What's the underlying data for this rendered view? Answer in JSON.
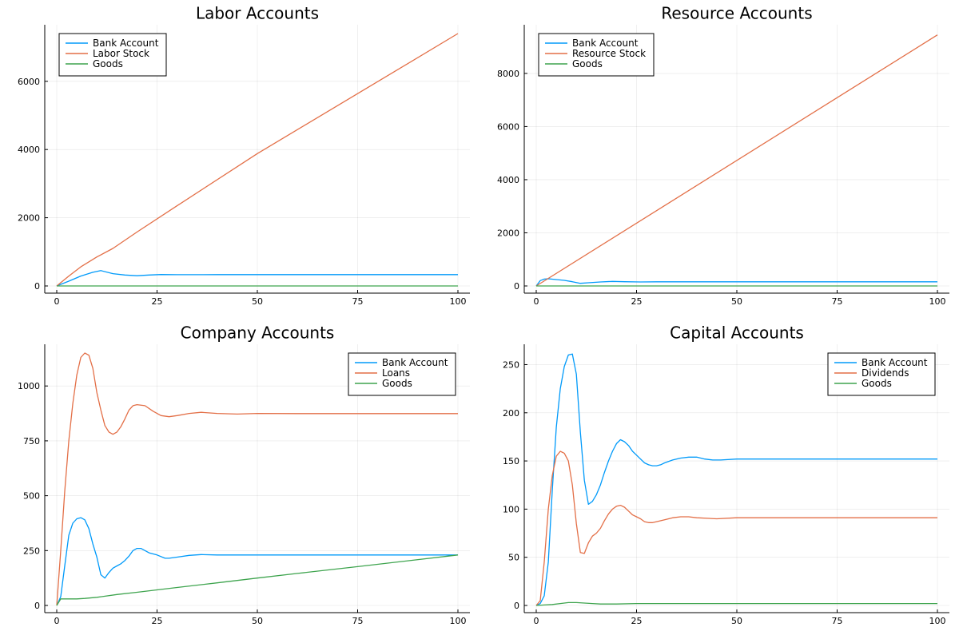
{
  "chart_data": [
    {
      "type": "line",
      "title": "Labor Accounts",
      "xlim": [
        0,
        100
      ],
      "ylim": [
        0,
        7400
      ],
      "xticks": [
        0,
        25,
        50,
        75,
        100
      ],
      "yticks": [
        0,
        2000,
        4000,
        6000
      ],
      "grid": true,
      "legend_position": "top-left",
      "series": [
        {
          "name": "Bank Account",
          "color": "#009AFA",
          "x": [
            0,
            3,
            6,
            9,
            11,
            14,
            17,
            20,
            23,
            26,
            30,
            35,
            40,
            50,
            60,
            75,
            100
          ],
          "y": [
            0,
            140,
            290,
            400,
            450,
            360,
            320,
            300,
            320,
            335,
            330,
            330,
            333,
            333,
            333,
            333,
            333
          ]
        },
        {
          "name": "Labor Stock",
          "color": "#E36F47",
          "x": [
            0,
            3,
            6,
            10,
            14,
            20,
            30,
            50,
            75,
            100
          ],
          "y": [
            0,
            290,
            560,
            850,
            1100,
            1580,
            2350,
            3880,
            5640,
            7400
          ]
        },
        {
          "name": "Goods",
          "color": "#3EA44E",
          "x": [
            0,
            100
          ],
          "y": [
            0,
            0
          ]
        }
      ]
    },
    {
      "type": "line",
      "title": "Resource Accounts",
      "xlim": [
        0,
        100
      ],
      "ylim": [
        0,
        9500
      ],
      "xticks": [
        0,
        25,
        50,
        75,
        100
      ],
      "yticks": [
        0,
        2000,
        4000,
        6000,
        8000
      ],
      "grid": true,
      "legend_position": "top-left",
      "series": [
        {
          "name": "Bank Account",
          "color": "#009AFA",
          "x": [
            0,
            1,
            2,
            3,
            5,
            7,
            9,
            11,
            13,
            16,
            19,
            22,
            26,
            30,
            40,
            60,
            100
          ],
          "y": [
            0,
            200,
            260,
            270,
            240,
            210,
            160,
            100,
            120,
            150,
            170,
            160,
            150,
            155,
            155,
            155,
            155
          ]
        },
        {
          "name": "Resource Stock",
          "color": "#E36F47",
          "x": [
            0,
            100
          ],
          "y": [
            0,
            9450
          ]
        },
        {
          "name": "Goods",
          "color": "#3EA44E",
          "x": [
            0,
            100
          ],
          "y": [
            0,
            0
          ]
        }
      ]
    },
    {
      "type": "line",
      "title": "Company Accounts",
      "xlim": [
        0,
        100
      ],
      "ylim": [
        0,
        1150
      ],
      "xticks": [
        0,
        25,
        50,
        75,
        100
      ],
      "yticks": [
        0,
        250,
        500,
        750,
        1000
      ],
      "grid": true,
      "legend_position": "top-right",
      "series": [
        {
          "name": "Bank Account",
          "color": "#009AFA",
          "x": [
            0,
            1,
            2,
            3,
            4,
            5,
            6,
            7,
            8,
            9,
            10,
            11,
            12,
            13,
            14,
            15,
            16,
            17,
            18,
            19,
            20,
            21,
            22,
            23,
            25,
            27,
            28,
            30,
            33,
            36,
            40,
            45,
            50,
            60,
            75,
            100
          ],
          "y": [
            0,
            40,
            180,
            320,
            375,
            395,
            400,
            390,
            350,
            280,
            220,
            140,
            125,
            150,
            170,
            180,
            190,
            205,
            225,
            250,
            260,
            260,
            250,
            240,
            230,
            215,
            215,
            220,
            228,
            232,
            230,
            230,
            230,
            230,
            230,
            230
          ]
        },
        {
          "name": "Loans",
          "color": "#E36F47",
          "x": [
            0,
            1,
            2,
            3,
            4,
            5,
            6,
            7,
            8,
            9,
            10,
            11,
            12,
            13,
            14,
            15,
            16,
            17,
            18,
            19,
            20,
            22,
            24,
            26,
            28,
            30,
            33,
            36,
            40,
            45,
            50,
            60,
            75,
            100
          ],
          "y": [
            0,
            250,
            520,
            750,
            920,
            1050,
            1130,
            1150,
            1140,
            1080,
            970,
            890,
            820,
            790,
            780,
            790,
            815,
            850,
            890,
            910,
            915,
            910,
            885,
            865,
            860,
            865,
            875,
            880,
            875,
            872,
            875,
            874,
            874,
            874
          ]
        },
        {
          "name": "Goods",
          "color": "#3EA44E",
          "x": [
            0,
            1,
            2,
            3,
            5,
            7,
            10,
            15,
            20,
            30,
            40,
            50,
            60,
            75,
            100
          ],
          "y": [
            0,
            30,
            30,
            30,
            30,
            32,
            37,
            50,
            60,
            82,
            103,
            125,
            146,
            177,
            230
          ]
        }
      ]
    },
    {
      "type": "line",
      "title": "Capital Accounts",
      "xlim": [
        0,
        100
      ],
      "ylim": [
        0,
        262
      ],
      "xticks": [
        0,
        25,
        50,
        75,
        100
      ],
      "yticks": [
        0,
        50,
        100,
        150,
        200,
        250
      ],
      "grid": true,
      "legend_position": "top-right",
      "series": [
        {
          "name": "Bank Account",
          "color": "#009AFA",
          "x": [
            0,
            1,
            2,
            3,
            4,
            5,
            6,
            7,
            8,
            9,
            10,
            11,
            12,
            13,
            14,
            15,
            16,
            17,
            18,
            19,
            20,
            21,
            22,
            23,
            24,
            25,
            26,
            27,
            28,
            29,
            30,
            31,
            32,
            34,
            36,
            38,
            40,
            42,
            44,
            46,
            50,
            55,
            60,
            75,
            100
          ],
          "y": [
            0,
            2,
            10,
            45,
            120,
            185,
            225,
            248,
            260,
            261,
            240,
            180,
            130,
            105,
            108,
            115,
            125,
            138,
            150,
            160,
            168,
            172,
            170,
            166,
            160,
            156,
            152,
            148,
            146,
            145,
            145,
            146,
            148,
            151,
            153,
            154,
            154,
            152,
            151,
            151,
            152,
            152,
            152,
            152,
            152
          ]
        },
        {
          "name": "Dividends",
          "color": "#E36F47",
          "x": [
            0,
            1,
            2,
            3,
            4,
            5,
            6,
            7,
            8,
            9,
            10,
            11,
            12,
            13,
            14,
            15,
            16,
            17,
            18,
            19,
            20,
            21,
            22,
            23,
            24,
            25,
            26,
            27,
            28,
            29,
            30,
            32,
            34,
            36,
            38,
            40,
            45,
            50,
            60,
            75,
            100
          ],
          "y": [
            0,
            5,
            45,
            100,
            135,
            155,
            160,
            158,
            150,
            125,
            85,
            55,
            54,
            65,
            72,
            75,
            80,
            88,
            95,
            100,
            103,
            104,
            102,
            98,
            94,
            92,
            90,
            87,
            86,
            86,
            87,
            89,
            91,
            92,
            92,
            91,
            90,
            91,
            91,
            91,
            91
          ]
        },
        {
          "name": "Goods",
          "color": "#3EA44E",
          "x": [
            0,
            2,
            4,
            6,
            8,
            10,
            12,
            14,
            16,
            20,
            25,
            30,
            50,
            100
          ],
          "y": [
            0,
            0.5,
            1,
            2,
            3,
            3,
            2.5,
            2,
            1.5,
            1.5,
            2,
            2,
            2,
            2
          ]
        }
      ]
    }
  ]
}
